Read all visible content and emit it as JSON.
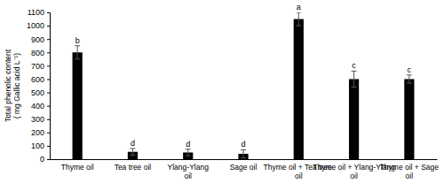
{
  "chart_data": {
    "type": "bar",
    "ylabel": "Total phenolic content ( mg Gallic acid L⁻¹)",
    "categories": [
      "Thyme oil",
      "Tea tree oil",
      "Ylang-Ylang oil",
      "Sage oil",
      "Thyme oil + Tea tree  oil",
      "Thyme oil + Ylang-Ylang oil",
      "Thyme oil + Sage oil"
    ],
    "values": [
      800,
      55,
      50,
      40,
      1050,
      600,
      600
    ],
    "errors": [
      50,
      25,
      25,
      30,
      50,
      60,
      30
    ],
    "annotations": [
      "b",
      "d",
      "d",
      "d",
      "a",
      "c",
      "c"
    ],
    "color": "#000000",
    "ylim": [
      0,
      1100
    ],
    "yticks": [
      0,
      100,
      200,
      300,
      400,
      500,
      600,
      700,
      800,
      900,
      1000,
      1100
    ],
    "grid": false
  }
}
